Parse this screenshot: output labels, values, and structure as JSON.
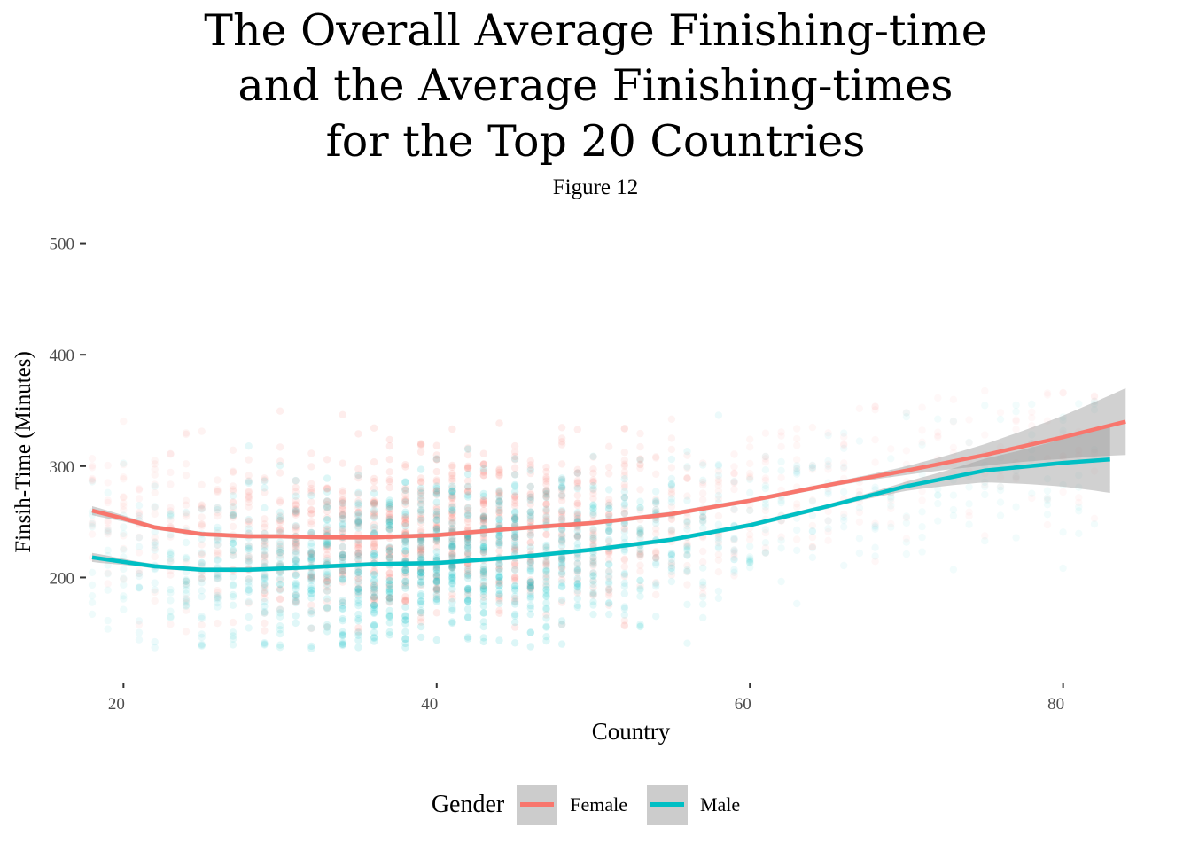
{
  "chart_data": {
    "type": "scatter",
    "title_lines": [
      "The Overall Average Finishing-time",
      "and the Average Finishing-times",
      "for the Top 20 Countries"
    ],
    "subtitle": "Figure 12",
    "xlabel": "Country",
    "ylabel": "Finsih-Time (Minutes)",
    "xlim": [
      18,
      85
    ],
    "ylim": [
      112,
      510
    ],
    "x_ticks": [
      20,
      40,
      60,
      80
    ],
    "y_ticks": [
      200,
      300,
      400,
      500
    ],
    "grid": false,
    "legend_position": "bottom",
    "legend_title": "Gender",
    "series": [
      {
        "name": "Female",
        "color": "#F8766D",
        "smooth_x": [
          18,
          20,
          22,
          25,
          28,
          30,
          33,
          36,
          40,
          45,
          50,
          55,
          60,
          65,
          70,
          75,
          80,
          84
        ],
        "smooth_y": [
          260,
          253,
          245,
          239,
          237,
          237,
          236,
          236,
          238,
          244,
          249,
          257,
          269,
          283,
          296,
          310,
          326,
          340
        ],
        "point_y_range": [
          150,
          370
        ]
      },
      {
        "name": "Male",
        "color": "#00BFC4",
        "smooth_x": [
          18,
          20,
          22,
          25,
          28,
          30,
          33,
          36,
          40,
          45,
          50,
          55,
          60,
          65,
          70,
          75,
          80,
          83
        ],
        "smooth_y": [
          218,
          214,
          210,
          207,
          207,
          208,
          210,
          212,
          213,
          218,
          225,
          234,
          247,
          264,
          282,
          296,
          303,
          306
        ],
        "point_y_range": [
          135,
          360
        ]
      }
    ]
  }
}
